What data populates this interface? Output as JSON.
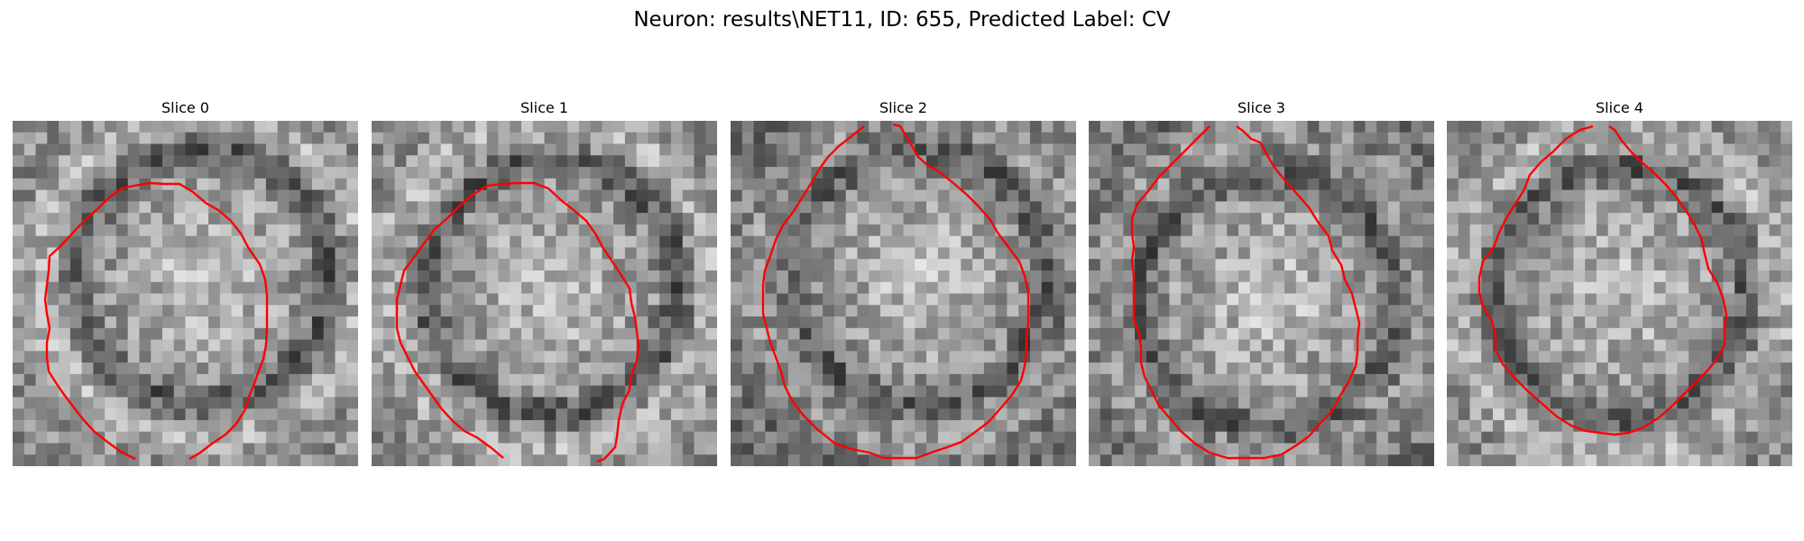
{
  "figure": {
    "title": "Neuron: results\\NET11, ID: 655, Predicted Label: CV"
  },
  "panels": [
    {
      "title": "Slice 0"
    },
    {
      "title": "Slice 1"
    },
    {
      "title": "Slice 2"
    },
    {
      "title": "Slice 3"
    },
    {
      "title": "Slice 4"
    }
  ],
  "colors": {
    "contour": "#ff0000",
    "background": "#ffffff"
  }
}
